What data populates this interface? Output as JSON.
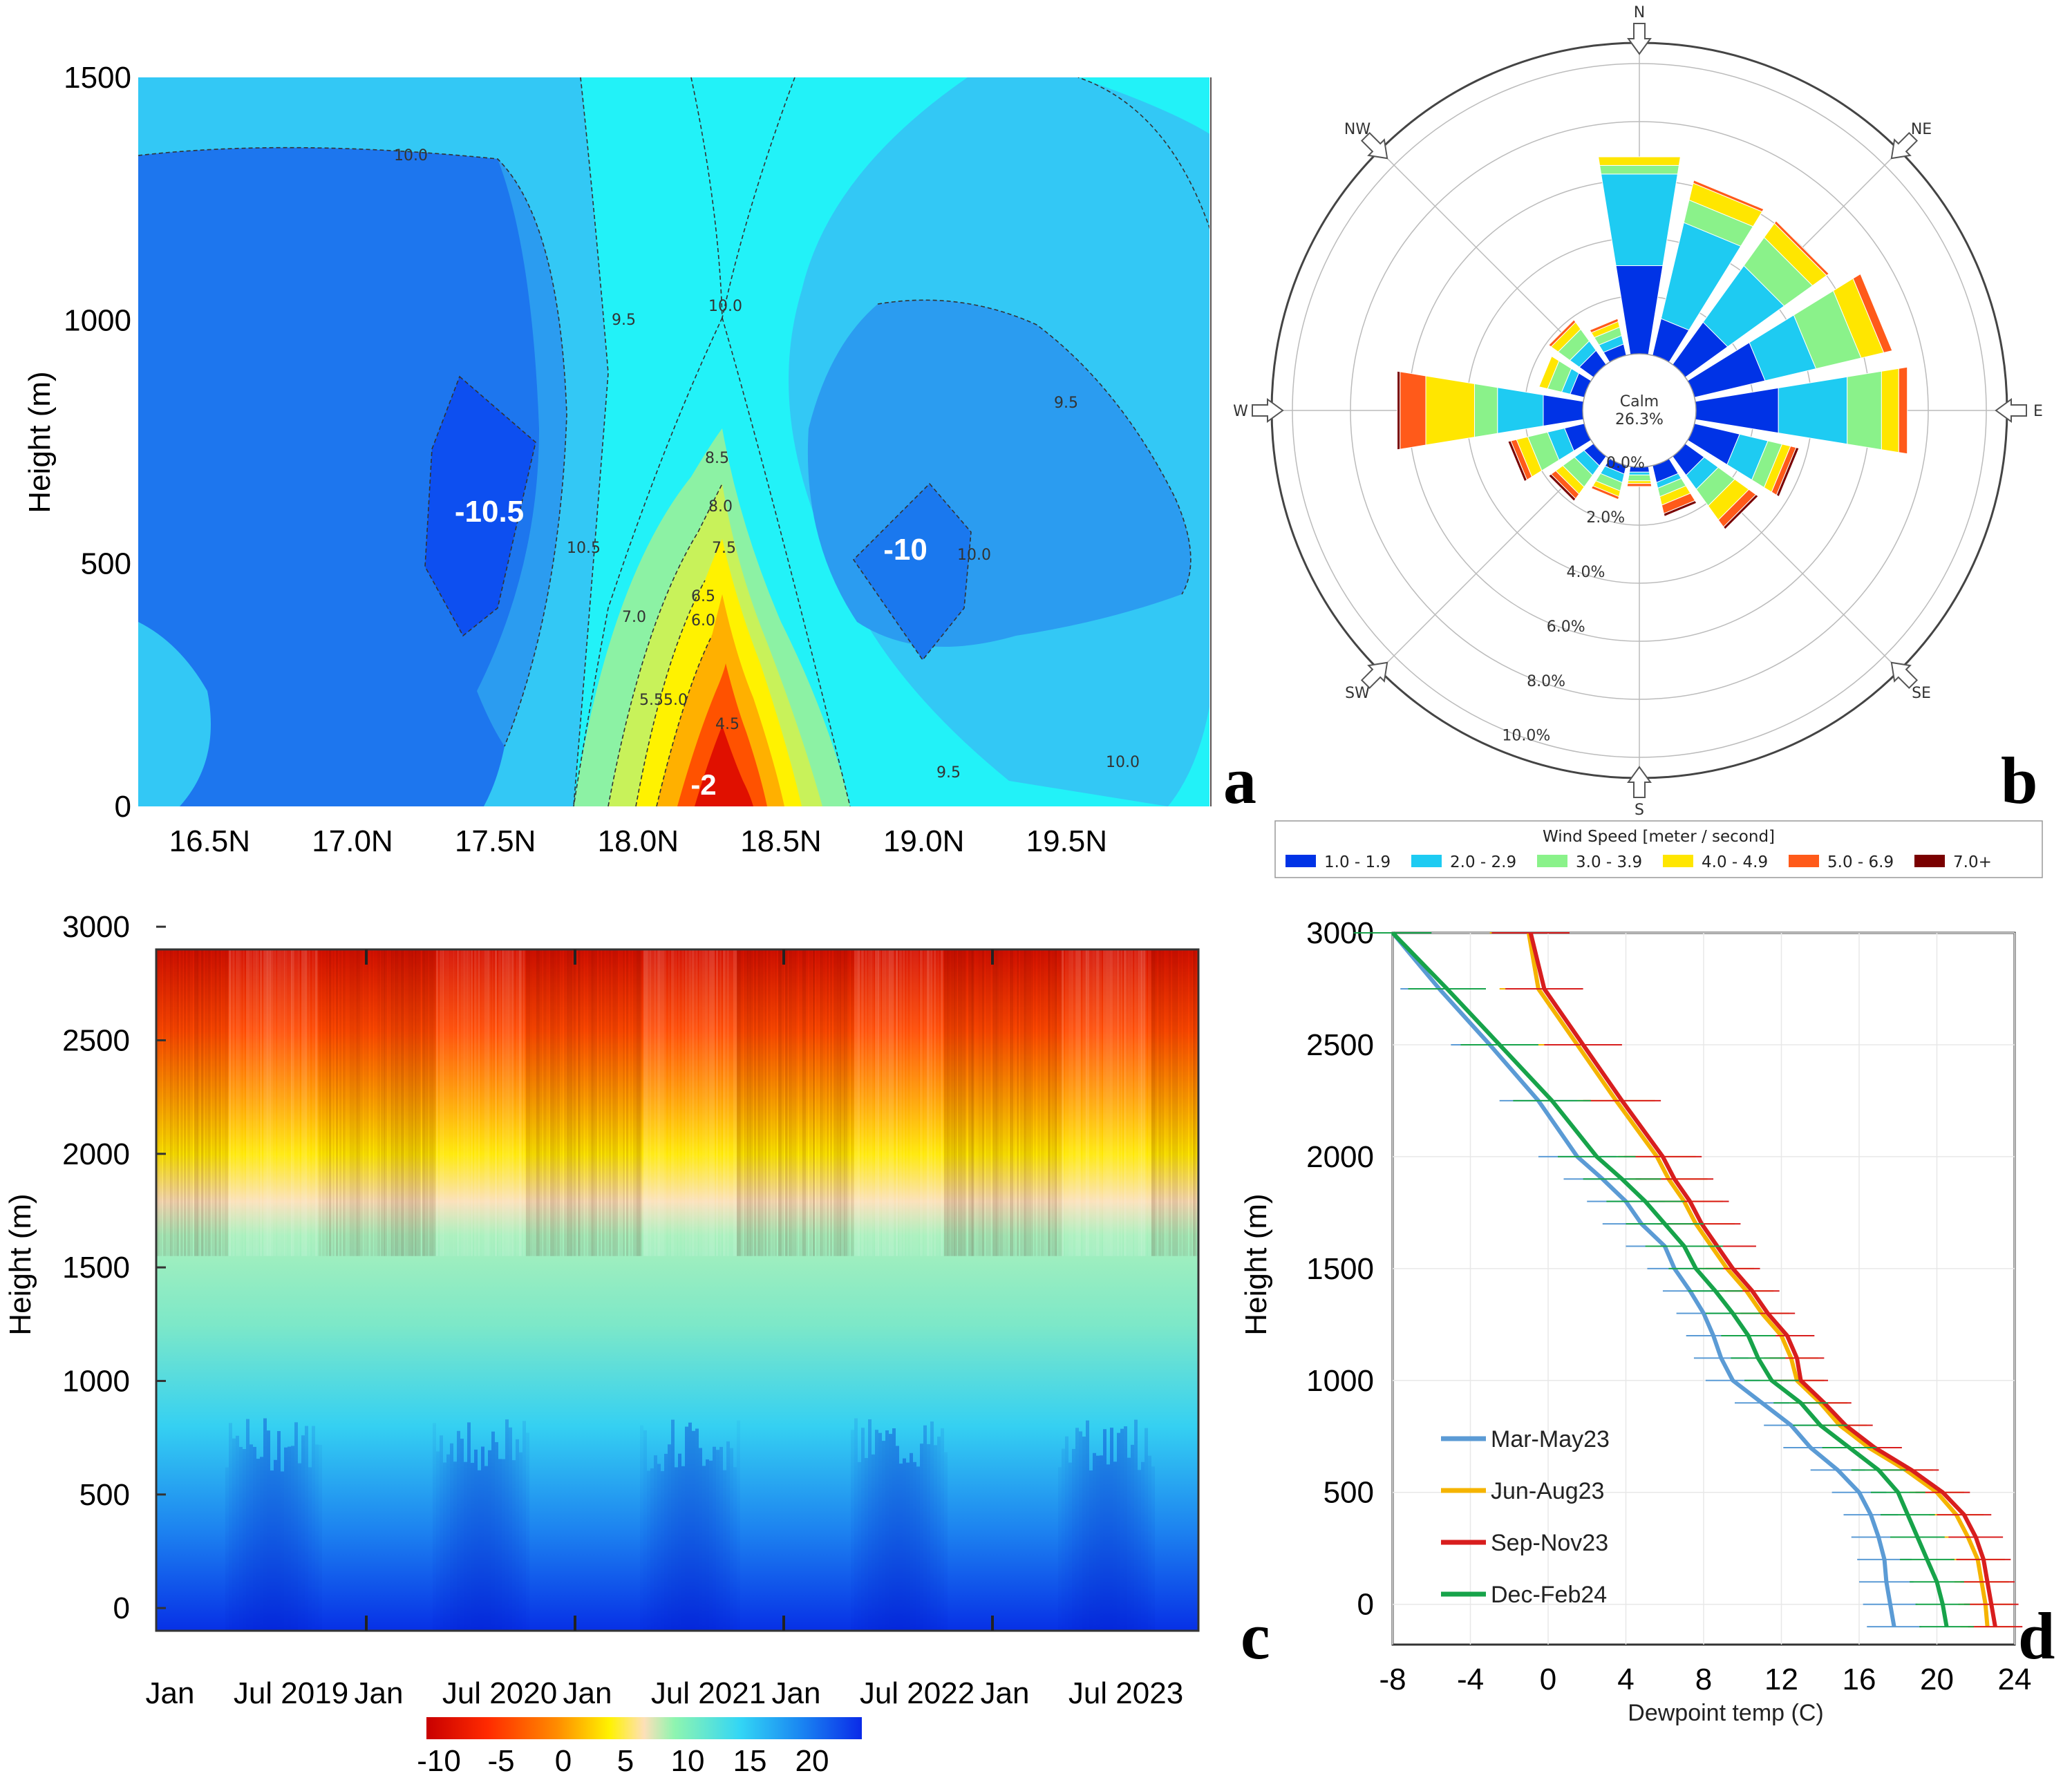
{
  "colors": {
    "deep_blue": "#0047e0",
    "blue": "#1c73f0",
    "mid_blue": "#2b9cf0",
    "light_blue": "#33c8f5",
    "cyan": "#22f4f8",
    "green": "#8cf2a4",
    "yellow": "#fff200",
    "orange": "#ff9a00",
    "red": "#e01000",
    "wind_1": "#0033e6",
    "wind_2": "#1ecbf2",
    "wind_3": "#8af28a",
    "wind_4": "#ffe600",
    "wind_5": "#ff5a1a",
    "wind_6": "#7a0000"
  },
  "panel_letters": {
    "a": "a",
    "b": "b",
    "c": "c",
    "d": "d"
  },
  "chart_data": [
    {
      "id": "a",
      "type": "heatmap",
      "title": "",
      "xlabel": "",
      "ylabel": "Height (m)",
      "x_ticks": [
        "16.5N",
        "17.0N",
        "17.5N",
        "18.0N",
        "18.5N",
        "19.0N",
        "19.5N"
      ],
      "y_ticks": [
        "0",
        "500",
        "1000",
        "1500"
      ],
      "xlim": [
        16.25,
        20.0
      ],
      "ylim": [
        0,
        1500
      ],
      "annotations": [
        "-10.5",
        "-10",
        "-2"
      ],
      "contour_labels": [
        "10.0",
        "9.5",
        "10.0",
        "10.5",
        "8.5",
        "8.0",
        "7.5",
        "7.0",
        "6.5",
        "6.0",
        "5.5",
        "5.0",
        "4.5",
        "9.5",
        "10.0",
        "9.5",
        "10.0"
      ]
    },
    {
      "id": "b",
      "type": "windrose",
      "directions": [
        "N",
        "NE",
        "E",
        "SE",
        "S",
        "SW",
        "W",
        "NW"
      ],
      "center_label": "Calm",
      "calm_pct": "26.3%",
      "ring_labels": [
        "0.0%",
        "2.0%",
        "4.0%",
        "6.0%",
        "8.0%",
        "10.0%"
      ],
      "legend_title": "Wind Speed [meter / second]",
      "bins": [
        "1.0 - 1.9",
        "2.0 - 2.9",
        "3.0 - 3.9",
        "4.0 - 4.9",
        "5.0 - 6.9",
        "7.0+"
      ],
      "petal_dirs_deg": [
        0,
        22.5,
        45,
        67.5,
        90,
        112.5,
        135,
        157.5,
        180,
        202.5,
        225,
        247.5,
        270,
        292.5,
        315,
        337.5
      ],
      "petals": [
        [
          3.1,
          3.2,
          0.3,
          0.3,
          0,
          0
        ],
        [
          1.3,
          3.4,
          0.8,
          0.6,
          0.1,
          0
        ],
        [
          1.8,
          2.4,
          1.2,
          0.6,
          0.1,
          0
        ],
        [
          2.5,
          1.8,
          1.6,
          0.8,
          0.3,
          0
        ],
        [
          2.9,
          2.4,
          1.2,
          0.6,
          0.3,
          0
        ],
        [
          1.6,
          1.0,
          0.5,
          0.3,
          0.2,
          0.1
        ],
        [
          0.8,
          0.6,
          0.7,
          0.6,
          0.3,
          0.1
        ],
        [
          0.6,
          0.2,
          0.3,
          0.3,
          0.3,
          0.1
        ],
        [
          0.2,
          0.1,
          0.2,
          0.1,
          0.1,
          0
        ],
        [
          0.3,
          0.3,
          0.3,
          0.2,
          0.1,
          0
        ],
        [
          0.4,
          0.4,
          0.5,
          0.3,
          0.2,
          0.1
        ],
        [
          0.7,
          0.6,
          0.7,
          0.4,
          0.2,
          0.1
        ],
        [
          1.4,
          1.6,
          0.8,
          1.7,
          0.9,
          0.1
        ],
        [
          0.5,
          0.3,
          0.5,
          0.3,
          0,
          0
        ],
        [
          0.6,
          0.4,
          0.5,
          0.3,
          0.1,
          0
        ],
        [
          0.4,
          0.3,
          0.3,
          0.2,
          0.1,
          0
        ]
      ]
    },
    {
      "id": "c",
      "type": "heatmap",
      "ylabel": "Height (m)",
      "x_ticks": [
        "Jan",
        "Jul 2019",
        "Jan",
        "Jul 2020",
        "Jan",
        "Jul 2021",
        "Jan",
        "Jul 2022",
        "Jan",
        "Jul 2023"
      ],
      "y_ticks": [
        "0",
        "500",
        "1000",
        "1500",
        "2000",
        "2500",
        "3000"
      ],
      "ylim": [
        -100,
        2900
      ],
      "colorbar_ticks": [
        "-10",
        "-5",
        "0",
        "5",
        "10",
        "15",
        "20"
      ],
      "colorbar_range": [
        -11,
        24
      ]
    },
    {
      "id": "d",
      "type": "line",
      "xlabel": "Dewpoint temp (C)",
      "ylabel": "Height (m)",
      "x_ticks": [
        "-8",
        "-4",
        "0",
        "4",
        "8",
        "12",
        "16",
        "20",
        "24"
      ],
      "y_ticks": [
        "0",
        "500",
        "1000",
        "1500",
        "2000",
        "2500",
        "3000"
      ],
      "xlim": [
        -8,
        24
      ],
      "ylim": [
        -180,
        3000
      ],
      "heights": [
        -100,
        0,
        100,
        200,
        300,
        400,
        500,
        600,
        700,
        800,
        900,
        1000,
        1100,
        1200,
        1300,
        1400,
        1500,
        1600,
        1700,
        1800,
        1900,
        2000,
        2250,
        2500,
        2750,
        3000
      ],
      "series": [
        {
          "name": "Mar-May23",
          "color": "#5b9bd5",
          "values": [
            17.8,
            17.6,
            17.4,
            17.3,
            17.0,
            16.6,
            16.0,
            14.9,
            13.5,
            12.5,
            11.0,
            9.5,
            8.9,
            8.5,
            8.0,
            7.3,
            6.5,
            6.0,
            4.8,
            4.0,
            2.8,
            1.5,
            -0.5,
            -3.0,
            -5.6,
            -8.0
          ]
        },
        {
          "name": "Jun-Aug23",
          "color": "#f5b400",
          "values": [
            22.6,
            22.5,
            22.3,
            22.1,
            21.6,
            21.0,
            20.0,
            18.4,
            16.5,
            15.0,
            14.0,
            12.8,
            12.5,
            12.0,
            11.0,
            10.2,
            9.2,
            8.4,
            7.6,
            7.0,
            6.2,
            5.6,
            3.5,
            1.5,
            -0.5,
            -1.0
          ]
        },
        {
          "name": "Sep-Nov23",
          "color": "#d81e1e",
          "values": [
            23.0,
            22.8,
            22.6,
            22.4,
            22.0,
            21.4,
            20.3,
            18.7,
            16.8,
            15.3,
            14.2,
            13.0,
            12.8,
            12.3,
            11.3,
            10.5,
            9.5,
            8.7,
            7.9,
            7.3,
            6.5,
            5.9,
            3.8,
            1.8,
            -0.2,
            -0.9
          ]
        },
        {
          "name": "Dec-Feb24",
          "color": "#17a34a",
          "values": [
            20.5,
            20.3,
            20.0,
            19.5,
            19.0,
            18.5,
            18.0,
            17.0,
            15.5,
            14.0,
            13.0,
            11.5,
            10.8,
            10.3,
            9.5,
            8.6,
            7.6,
            7.0,
            6.0,
            5.0,
            3.8,
            2.5,
            0.2,
            -2.5,
            -5.2,
            -8.0
          ]
        }
      ]
    }
  ]
}
